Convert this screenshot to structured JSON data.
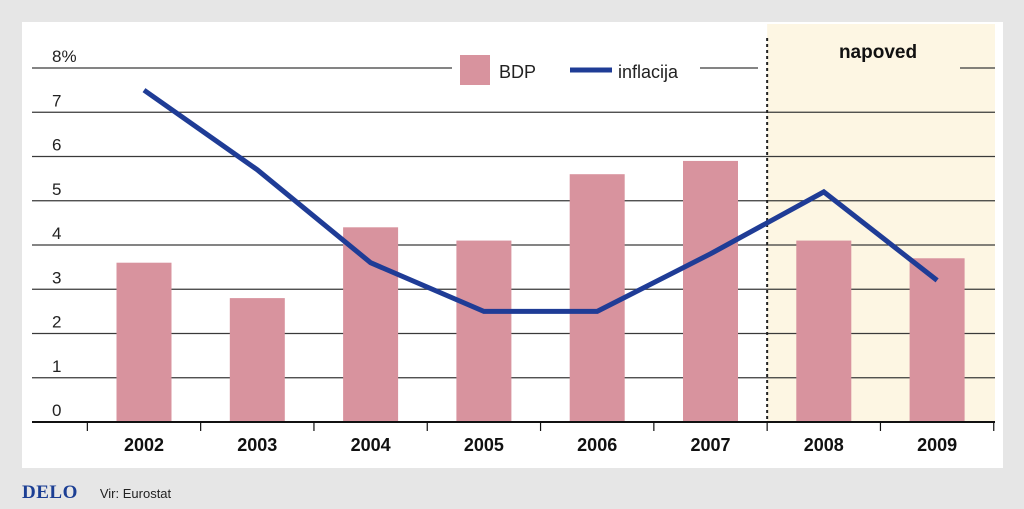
{
  "chart_data": {
    "type": "bar+line",
    "categories": [
      "2002",
      "2003",
      "2004",
      "2005",
      "2006",
      "2007",
      "2008",
      "2009"
    ],
    "series": [
      {
        "name": "BDP",
        "type": "bar",
        "values": [
          3.6,
          2.8,
          4.4,
          4.1,
          5.6,
          5.9,
          4.1,
          3.7
        ]
      },
      {
        "name": "inflacija",
        "type": "line",
        "values": [
          7.5,
          5.7,
          3.6,
          2.5,
          2.5,
          3.8,
          5.2,
          3.2
        ]
      }
    ],
    "y_tick_labels": [
      "0",
      "1",
      "2",
      "3",
      "4",
      "5",
      "6",
      "7",
      "8%"
    ],
    "ylim": [
      0,
      8
    ],
    "forecast_label": "napoved",
    "forecast_from": "2008",
    "legend_position": "top-center",
    "colors": {
      "bar": "#d8939e",
      "line": "#1f3c96",
      "forecast_bg": "#fdf6e3",
      "grid": "#3a3a3a",
      "plot_bg": "#ffffff"
    }
  },
  "footer": {
    "logo": "DELO",
    "source": "Vir: Eurostat"
  }
}
